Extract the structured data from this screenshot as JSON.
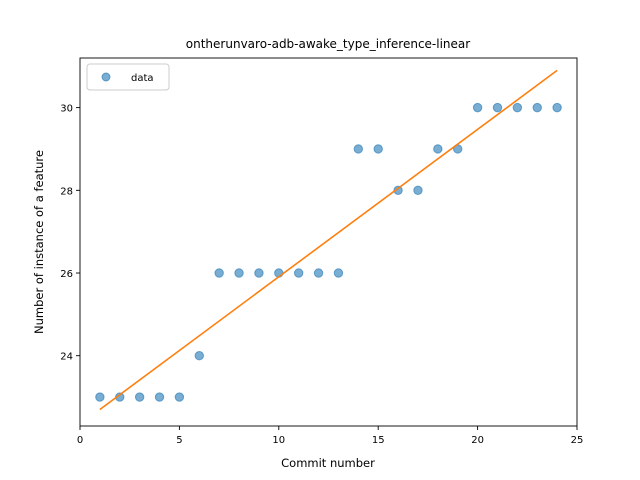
{
  "chart_data": {
    "type": "scatter",
    "title": "ontherunvaro-adb-awake_type_inference-linear",
    "xlabel": "Commit number",
    "ylabel": "Number of instance of a feature",
    "xlim": [
      0,
      25
    ],
    "ylim": [
      22.3,
      31.2
    ],
    "xticks": [
      0,
      5,
      10,
      15,
      20,
      25
    ],
    "yticks": [
      24,
      26,
      28,
      30
    ],
    "grid": false,
    "legend_position": "top-left",
    "series": [
      {
        "name": "data",
        "kind": "scatter",
        "color": "#1f77b4",
        "x": [
          1,
          2,
          3,
          4,
          5,
          6,
          7,
          8,
          9,
          10,
          11,
          12,
          13,
          14,
          15,
          16,
          17,
          18,
          19,
          20,
          21,
          22,
          23,
          24
        ],
        "y": [
          23,
          23,
          23,
          23,
          23,
          24,
          26,
          26,
          26,
          26,
          26,
          26,
          26,
          29,
          29,
          28,
          28,
          29,
          29,
          30,
          30,
          30,
          30,
          30
        ]
      },
      {
        "kind": "line",
        "color": "#ff7f0e",
        "x": [
          1,
          24
        ],
        "y": [
          22.7,
          30.9
        ]
      }
    ]
  }
}
